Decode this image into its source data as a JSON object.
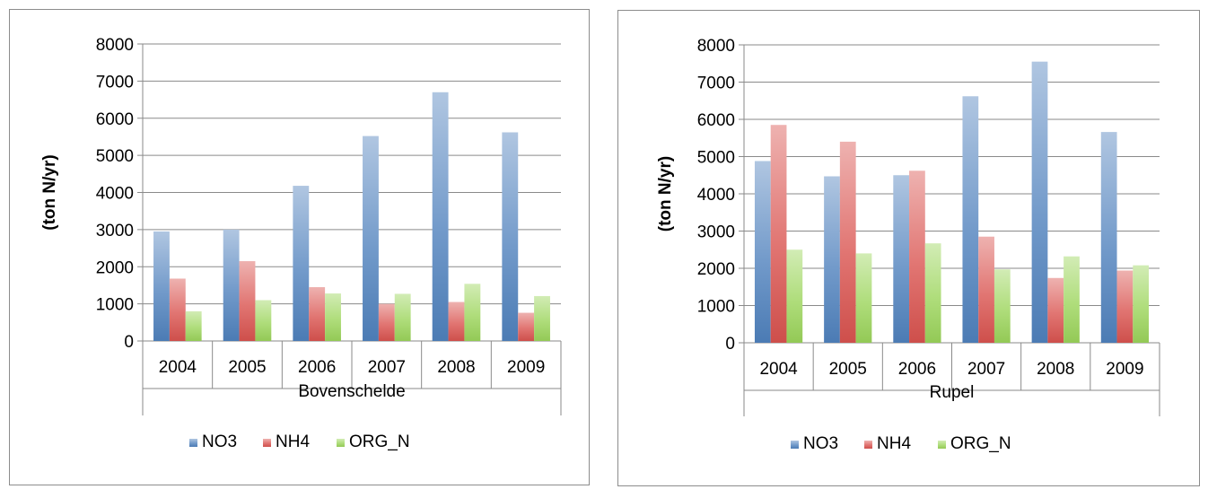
{
  "chart_data": [
    {
      "type": "bar",
      "title": "",
      "xlabel": "Bovenschelde",
      "ylabel": "(ton N/yr)",
      "ylim": [
        0,
        8000
      ],
      "yticks": [
        "0",
        "1000",
        "2000",
        "3000",
        "4000",
        "5000",
        "6000",
        "7000",
        "8000"
      ],
      "categories": [
        "2004",
        "2005",
        "2006",
        "2007",
        "2008",
        "2009"
      ],
      "group_label": "Bovenschelde",
      "series": [
        {
          "name": "NO3",
          "color": "#4f81bd",
          "values": [
            2950,
            3000,
            4180,
            5520,
            6700,
            5620
          ]
        },
        {
          "name": "NH4",
          "color": "#d9534f",
          "values": [
            1680,
            2150,
            1450,
            1000,
            1050,
            760
          ]
        },
        {
          "name": "ORG_N",
          "color": "#9bd45a",
          "values": [
            800,
            1100,
            1280,
            1270,
            1540,
            1210
          ]
        }
      ],
      "legend": "bottom",
      "grid": true
    },
    {
      "type": "bar",
      "title": "",
      "xlabel": "Rupel",
      "ylabel": "(ton N/yr)",
      "ylim": [
        0,
        8000
      ],
      "yticks": [
        "0",
        "1000",
        "2000",
        "3000",
        "4000",
        "5000",
        "6000",
        "7000",
        "8000"
      ],
      "categories": [
        "2004",
        "2005",
        "2006",
        "2007",
        "2008",
        "2009"
      ],
      "group_label": "Rupel",
      "series": [
        {
          "name": "NO3",
          "color": "#4f81bd",
          "values": [
            4880,
            4470,
            4500,
            6620,
            7550,
            5660
          ]
        },
        {
          "name": "NH4",
          "color": "#d9534f",
          "values": [
            5850,
            5400,
            4620,
            2850,
            1740,
            1940
          ]
        },
        {
          "name": "ORG_N",
          "color": "#9bd45a",
          "values": [
            2500,
            2400,
            2670,
            1970,
            2320,
            2080
          ]
        }
      ],
      "legend": "bottom",
      "grid": true
    }
  ]
}
